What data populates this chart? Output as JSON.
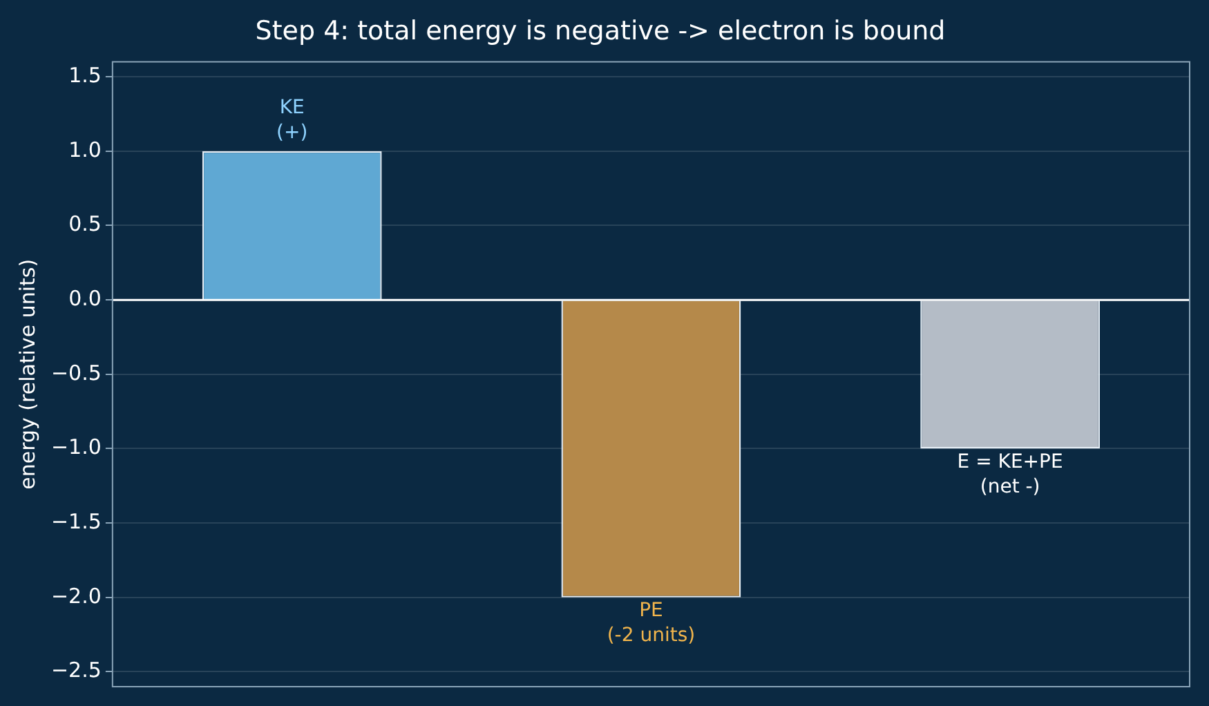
{
  "chart_data": {
    "type": "bar",
    "title": "Step 4: total energy is negative -> electron is bound",
    "ylabel": "energy (relative units)",
    "categories": [
      null,
      null,
      null
    ],
    "values": [
      1,
      -2,
      -1
    ],
    "colors": [
      "#5fa8d3",
      "#b5894a",
      "#b4bcc6"
    ],
    "ylim": [
      -2.6,
      1.6
    ],
    "yticks": [
      {
        "value": -2.5,
        "label": "−2.5"
      },
      {
        "value": -2,
        "label": "−2.0"
      },
      {
        "value": -1.5,
        "label": "−1.5"
      },
      {
        "value": -1,
        "label": "−1.0"
      },
      {
        "value": -0.5,
        "label": "−0.5"
      },
      {
        "value": 0,
        "label": "0.0"
      },
      {
        "value": 0.5,
        "label": "0.5"
      },
      {
        "value": 1,
        "label": "1.0"
      },
      {
        "value": 1.5,
        "label": "1.5"
      }
    ],
    "grid": "y",
    "ref_lines": [
      {
        "axis": "y",
        "value": 0,
        "color": "#ffffff"
      }
    ],
    "annotations": [
      {
        "text": "KE\n(+)",
        "y": 1
      },
      {
        "text": "PE\n(-2 units)",
        "y": -2
      },
      {
        "text": "E = KE+PE\n(net -)",
        "y": -1
      }
    ]
  }
}
